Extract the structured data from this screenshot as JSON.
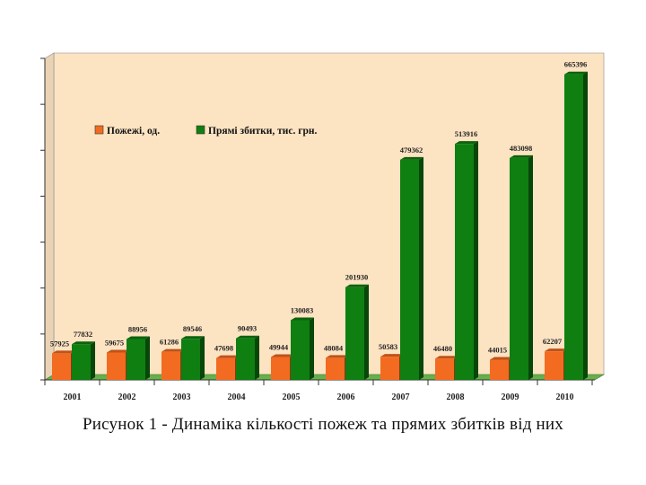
{
  "chart_data": {
    "type": "bar",
    "style": "3d-clustered",
    "categories": [
      "2001",
      "2002",
      "2003",
      "2004",
      "2005",
      "2006",
      "2007",
      "2008",
      "2009",
      "2010"
    ],
    "series": [
      {
        "name": "Пожежі, од.",
        "color": "#F26B21",
        "values": [
          57925,
          59675,
          61286,
          47698,
          49944,
          48084,
          50583,
          46480,
          44015,
          62207
        ],
        "labels": [
          "57925",
          "59675",
          "61286",
          "47698",
          "49944",
          "48084",
          "50583",
          "46480",
          "44015",
          "62207"
        ]
      },
      {
        "name": "Прямі збитки, тис. грн.",
        "color": "#0F7F12",
        "values": [
          77832,
          88956,
          89546,
          90493,
          130083,
          201930,
          479362,
          513916,
          483098,
          665396
        ],
        "labels": [
          "77832",
          "88956",
          "89546",
          "90493",
          "130083",
          "201930",
          "479362",
          "513916",
          "483098",
          "665396"
        ]
      }
    ],
    "ylim": [
      0,
      700000
    ],
    "ytick_step": 100000,
    "grid": false,
    "legend_position": "top-left",
    "plot_background": "#FCE3C2",
    "floor_color": "#66B04A"
  },
  "caption": "Рисунок 1 - Динаміка кількості пожеж та прямих збитків від них"
}
